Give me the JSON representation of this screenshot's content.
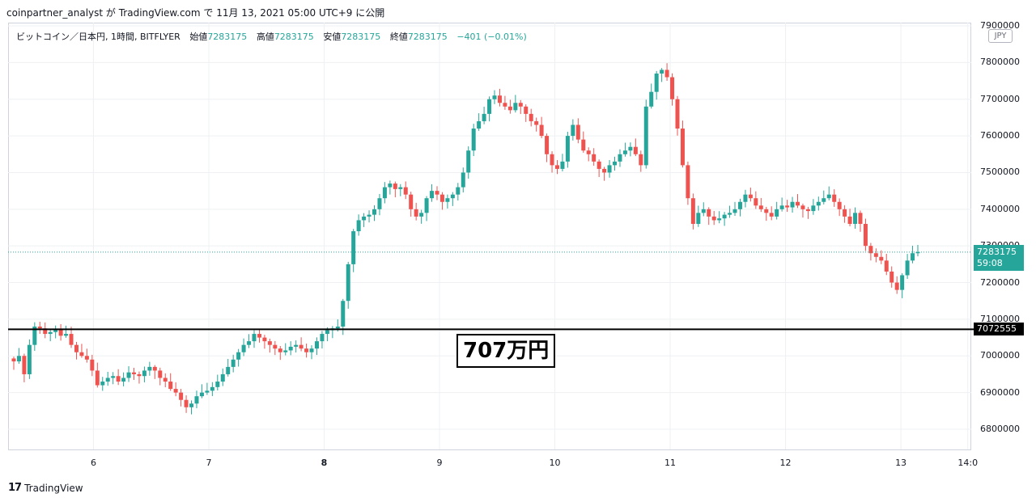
{
  "header": {
    "attribution": "coinpartner_analyst が TradingView.com で 11月 13, 2021 05:00 UTC+9 に公開"
  },
  "legend": {
    "symbol": "ビットコイン／日本円, 1時間, BITFLYER",
    "open_label": "始値",
    "open": "7283175",
    "high_label": "高値",
    "high": "7283175",
    "low_label": "安値",
    "low": "7283175",
    "close_label": "終値",
    "close": "7283175",
    "change": "−401 (−0.01%)"
  },
  "currency_badge": "JPY",
  "current_price": {
    "value": "7283175",
    "countdown": "59:08"
  },
  "level_line": {
    "value": "7072555",
    "annotation": "707万円"
  },
  "footer": {
    "logo": "17",
    "brand": "TradingView"
  },
  "colors": {
    "up": "#26a69a",
    "down": "#ef5350",
    "level": "#000000",
    "grid": "#eef0f3"
  },
  "chart_data": {
    "type": "candlestick",
    "timeframe": "1h",
    "ylim": [
      6730000,
      7900000
    ],
    "y_ticks": [
      7900000,
      7800000,
      7700000,
      7600000,
      7500000,
      7400000,
      7300000,
      7200000,
      7100000,
      7000000,
      6900000,
      6800000
    ],
    "x_ticks": [
      {
        "label": "6",
        "day": 6,
        "bold": false
      },
      {
        "label": "7",
        "day": 7,
        "bold": false
      },
      {
        "label": "8",
        "day": 8,
        "bold": true
      },
      {
        "label": "9",
        "day": 9,
        "bold": false
      },
      {
        "label": "10",
        "day": 10,
        "bold": false
      },
      {
        "label": "11",
        "day": 11,
        "bold": false
      },
      {
        "label": "12",
        "day": 12,
        "bold": false
      },
      {
        "label": "13",
        "day": 13,
        "bold": false
      },
      {
        "label": "14:0",
        "day": 13.58,
        "bold": false
      }
    ],
    "xlim_days": [
      5.26,
      13.61
    ],
    "horizontal_level": 7072555,
    "last_price": 7283175,
    "path_closes": [
      6985000,
      7000000,
      6950000,
      7030000,
      7080000,
      7075000,
      7060000,
      7065000,
      7072000,
      7055000,
      7060000,
      7030000,
      7010000,
      7000000,
      6990000,
      6960000,
      6920000,
      6930000,
      6940000,
      6945000,
      6930000,
      6940000,
      6955000,
      6950000,
      6945000,
      6960000,
      6970000,
      6960000,
      6940000,
      6930000,
      6910000,
      6900000,
      6880000,
      6860000,
      6870000,
      6890000,
      6900000,
      6905000,
      6915000,
      6930000,
      6950000,
      6970000,
      6990000,
      7010000,
      7030000,
      7040000,
      7060000,
      7050000,
      7040000,
      7030000,
      7020000,
      7010000,
      7015000,
      7025000,
      7030000,
      7020000,
      7010000,
      7020000,
      7040000,
      7060000,
      7070000,
      7075000,
      7080000,
      7150000,
      7250000,
      7340000,
      7370000,
      7380000,
      7385000,
      7400000,
      7430000,
      7460000,
      7470000,
      7455000,
      7460000,
      7440000,
      7400000,
      7380000,
      7390000,
      7430000,
      7450000,
      7440000,
      7420000,
      7430000,
      7440000,
      7460000,
      7500000,
      7560000,
      7620000,
      7640000,
      7660000,
      7700000,
      7710000,
      7690000,
      7680000,
      7670000,
      7690000,
      7680000,
      7660000,
      7640000,
      7630000,
      7600000,
      7550000,
      7520000,
      7510000,
      7530000,
      7600000,
      7630000,
      7590000,
      7560000,
      7550000,
      7530000,
      7510000,
      7500000,
      7520000,
      7530000,
      7550000,
      7560000,
      7570000,
      7550000,
      7520000,
      7680000,
      7720000,
      7770000,
      7780000,
      7760000,
      7700000,
      7620000,
      7520000,
      7430000,
      7360000,
      7390000,
      7400000,
      7380000,
      7370000,
      7375000,
      7385000,
      7390000,
      7400000,
      7420000,
      7440000,
      7430000,
      7410000,
      7400000,
      7390000,
      7380000,
      7400000,
      7410000,
      7405000,
      7420000,
      7410000,
      7400000,
      7395000,
      7410000,
      7420000,
      7430000,
      7440000,
      7420000,
      7400000,
      7380000,
      7360000,
      7390000,
      7360000,
      7300000,
      7280000,
      7270000,
      7260000,
      7230000,
      7200000,
      7180000,
      7220000,
      7260000,
      7280000,
      7283175
    ]
  }
}
